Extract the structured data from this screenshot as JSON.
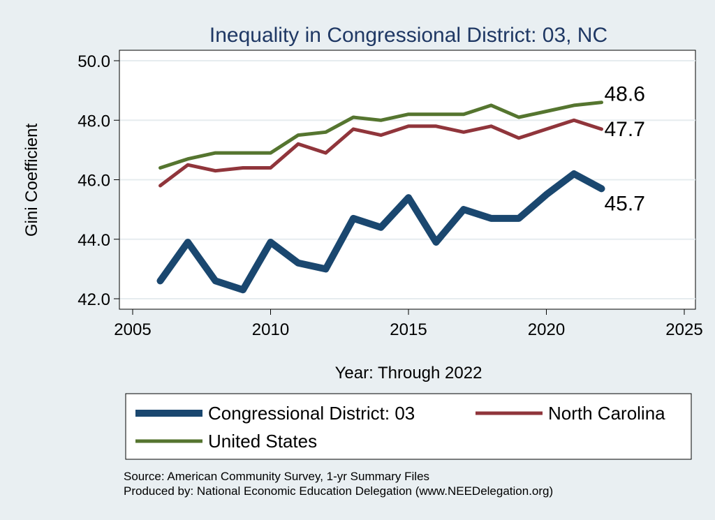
{
  "chart_data": {
    "type": "line",
    "title": "Inequality in Congressional District:  03, NC",
    "xlabel": "Year: Through 2022",
    "ylabel": "Gini Coefficient",
    "xlim": [
      2005,
      2025
    ],
    "ylim": [
      42.0,
      50.0
    ],
    "xticks": [
      2005,
      2010,
      2015,
      2020,
      2025
    ],
    "yticks": [
      42.0,
      44.0,
      46.0,
      48.0,
      50.0
    ],
    "xtick_labels": [
      "2005",
      "2010",
      "2015",
      "2020",
      "2025"
    ],
    "ytick_labels": [
      "42.0",
      "44.0",
      "46.0",
      "48.0",
      "50.0"
    ],
    "grid": true,
    "legend_position": "bottom",
    "x": [
      2006,
      2007,
      2008,
      2009,
      2010,
      2011,
      2012,
      2013,
      2014,
      2015,
      2016,
      2017,
      2018,
      2019,
      2020,
      2021,
      2022
    ],
    "series": [
      {
        "name": "Congressional District:  03",
        "color": "#1a476f",
        "values": [
          42.6,
          43.9,
          42.6,
          42.3,
          43.9,
          43.2,
          43.0,
          44.7,
          44.4,
          45.4,
          43.9,
          45.0,
          44.7,
          44.7,
          45.5,
          46.2,
          45.7
        ],
        "end_label": "45.7"
      },
      {
        "name": "North Carolina",
        "color": "#90353b",
        "values": [
          45.8,
          46.5,
          46.3,
          46.4,
          46.4,
          47.2,
          46.9,
          47.7,
          47.5,
          47.8,
          47.8,
          47.6,
          47.8,
          47.4,
          47.7,
          48.0,
          47.7
        ],
        "end_label": "47.7"
      },
      {
        "name": "United States",
        "color": "#55752f",
        "values": [
          46.4,
          46.7,
          46.9,
          46.9,
          46.9,
          47.5,
          47.6,
          48.1,
          48.0,
          48.2,
          48.2,
          48.2,
          48.5,
          48.1,
          48.3,
          48.5,
          48.6
        ],
        "end_label": "48.6"
      }
    ]
  },
  "footer": {
    "source": "Source: American Community Survey, 1-yr Summary Files",
    "produced_by": "Produced by: National Economic Education Delegation (www.NEEDelegation.org)"
  }
}
